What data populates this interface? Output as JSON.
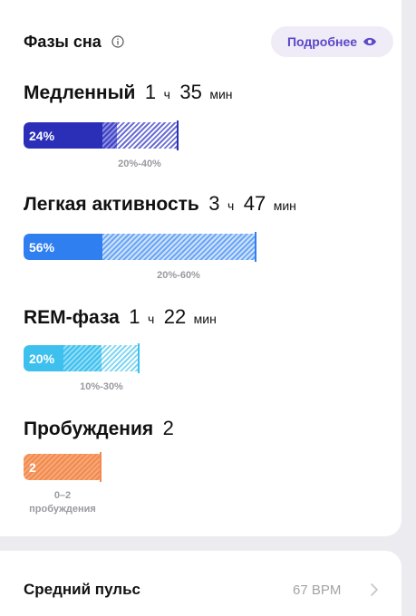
{
  "header": {
    "title": "Фазы сна",
    "more_label": "Подробнее"
  },
  "phases": [
    {
      "name": "Медленный",
      "hours": "1",
      "h_unit": "ч",
      "minutes": "35",
      "m_unit": "мин",
      "percent_label": "24%",
      "range_label": "20%-40%",
      "color": "#2b2fb8",
      "hatch": "#6b6fd6"
    },
    {
      "name": "Легкая активность",
      "hours": "3",
      "h_unit": "ч",
      "minutes": "47",
      "m_unit": "мин",
      "percent_label": "56%",
      "range_label": "20%-60%",
      "color": "#2f7ff0",
      "hatch": "#6aa6f5"
    },
    {
      "name": "REM-фаза",
      "hours": "1",
      "h_unit": "ч",
      "minutes": "22",
      "m_unit": "мин",
      "percent_label": "20%",
      "range_label": "10%-30%",
      "color": "#3ec0ee",
      "hatch": "#7fd6f4"
    },
    {
      "name": "Пробуждения",
      "count": "2",
      "percent_label": "2",
      "range_label": "0–2",
      "range_label2": "пробуждения",
      "color": "#f28a4e",
      "hatch": "#f6a878"
    }
  ],
  "pulse": {
    "label": "Средний пульс",
    "value": "67 BPM"
  },
  "icons": {
    "info": "info-icon",
    "eye": "eye-icon",
    "chevron": "chevron-right-icon"
  }
}
